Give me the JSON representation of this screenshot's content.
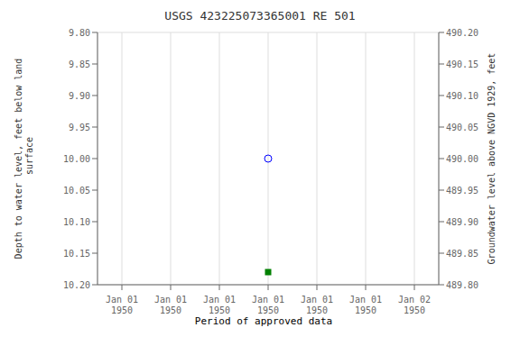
{
  "chart_data": {
    "type": "scatter",
    "title": "USGS 423225073365001 RE 501",
    "y_label": "Depth to water level, feet below land\n surface",
    "y2_label": "Groundwater level above NGVD 1929, feet",
    "categories": [
      "Jan 01\n1950",
      "Jan 01\n1950",
      "Jan 01\n1950",
      "Jan 01\n1950",
      "Jan 01\n1950",
      "Jan 01\n1950",
      "Jan 02\n1950"
    ],
    "series": [
      {
        "values": [
          null,
          null,
          null,
          10.0,
          null,
          null,
          null
        ],
        "color": "blue",
        "marker": "circle-open"
      },
      {
        "name": "Period of approved data",
        "values": [
          null,
          null,
          null,
          10.18,
          null,
          null,
          null
        ],
        "color": "#008000",
        "marker": "square"
      }
    ],
    "ylim": [
      10.2,
      9.8
    ],
    "yticks": [
      {
        "value": 9.8,
        "label": "9.80"
      },
      {
        "value": 9.85,
        "label": "9.85"
      },
      {
        "value": 9.9,
        "label": "9.90"
      },
      {
        "value": 9.95,
        "label": "9.95"
      },
      {
        "value": 10.0,
        "label": "10.00"
      },
      {
        "value": 10.05,
        "label": "10.05"
      },
      {
        "value": 10.1,
        "label": "10.10"
      },
      {
        "value": 10.15,
        "label": "10.15"
      },
      {
        "value": 10.2,
        "label": "10.20"
      }
    ],
    "y2lim": [
      489.8,
      490.2
    ],
    "y2ticks": [
      {
        "value": 490.2,
        "label": "490.20"
      },
      {
        "value": 490.15,
        "label": "490.15"
      },
      {
        "value": 490.1,
        "label": "490.10"
      },
      {
        "value": 490.05,
        "label": "490.05"
      },
      {
        "value": 490.0,
        "label": "490.00"
      },
      {
        "value": 489.95,
        "label": "489.95"
      },
      {
        "value": 489.9,
        "label": "489.90"
      },
      {
        "value": 489.85,
        "label": "489.85"
      },
      {
        "value": 489.8,
        "label": "489.80"
      }
    ],
    "grid": true,
    "legend": "bottom"
  }
}
